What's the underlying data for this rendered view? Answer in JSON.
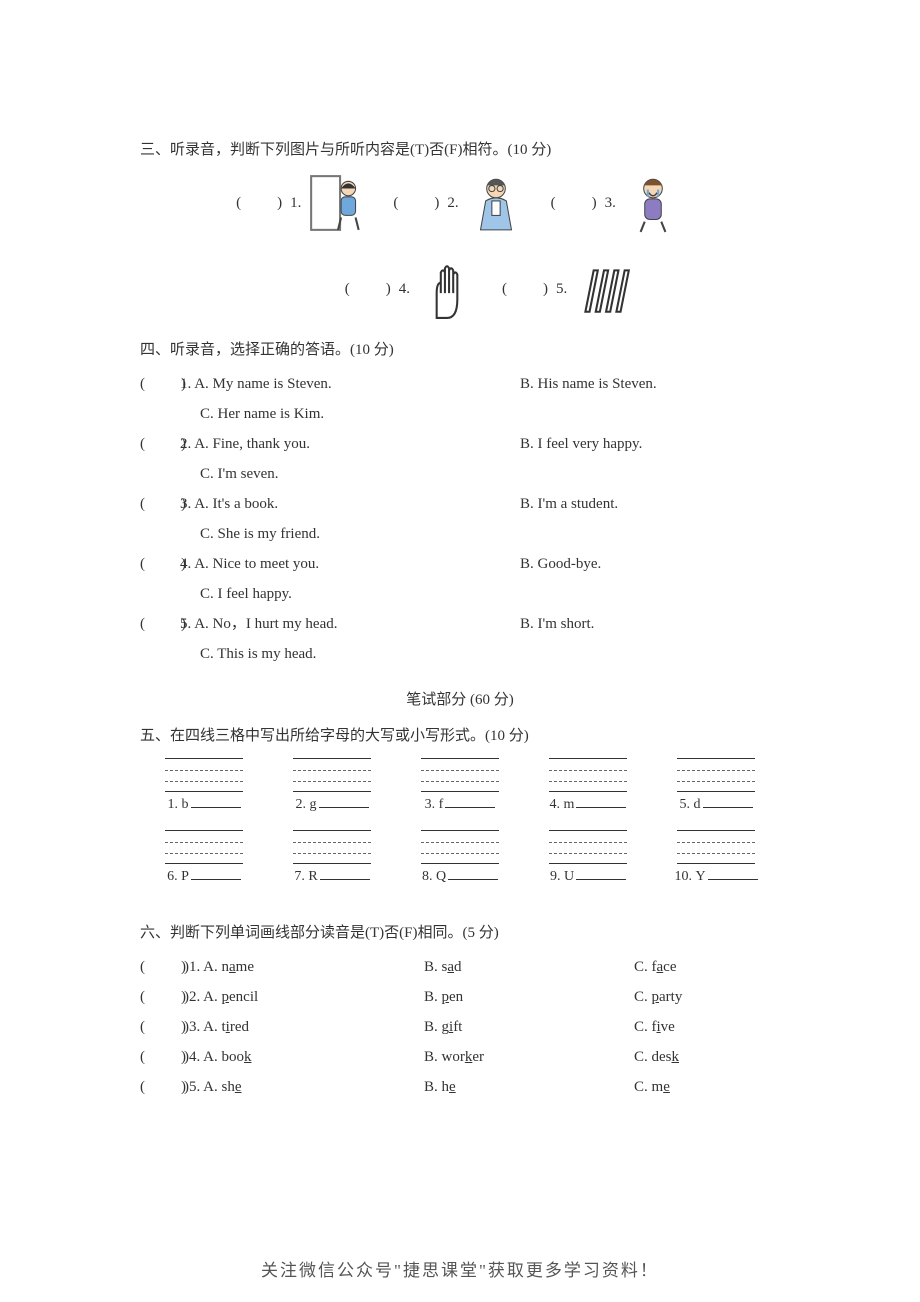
{
  "colors": {
    "text": "#333333",
    "bg": "#ffffff",
    "dash": "#666666",
    "footer": "#555555"
  },
  "typography": {
    "body_font": "SimSun / Songti",
    "body_size_pt": 11,
    "footer_font": "KaiTi",
    "footer_size_pt": 13
  },
  "section3": {
    "title": "三、听录音，判断下列图片与所听内容是(T)否(F)相符。(10 分)",
    "items": [
      {
        "num": "1.",
        "icon": "boy-in-doorway"
      },
      {
        "num": "2.",
        "icon": "teacher-man"
      },
      {
        "num": "3.",
        "icon": "boy-crying"
      },
      {
        "num": "4.",
        "icon": "hand"
      },
      {
        "num": "5.",
        "icon": "pens"
      }
    ],
    "paren_blank": "(　　)"
  },
  "section4": {
    "title": "四、听录音，选择正确的答语。(10 分)",
    "questions": [
      {
        "num": "1.",
        "a": "A. My name is Steven.",
        "b": "B. His name is Steven.",
        "c": "C. Her name is Kim."
      },
      {
        "num": "2.",
        "a": "A. Fine, thank you.",
        "b": "B. I feel very happy.",
        "c": "C. I'm seven."
      },
      {
        "num": "3.",
        "a": "A. It's a book.",
        "b": "B. I'm a student.",
        "c": "C. She is my friend."
      },
      {
        "num": "4.",
        "a": "A. Nice to meet you.",
        "b": "B. Good-bye.",
        "c": "C. I feel happy."
      },
      {
        "num": "5.",
        "a": "A. No，I hurt my head.",
        "b": "B. I'm short.",
        "c": "C. This is my head."
      }
    ]
  },
  "written_heading": "笔试部分 (60 分)",
  "section5": {
    "title": "五、在四线三格中写出所给字母的大写或小写形式。(10 分)",
    "items": [
      {
        "num": "1.",
        "letter": "b"
      },
      {
        "num": "2.",
        "letter": "g"
      },
      {
        "num": "3.",
        "letter": "f"
      },
      {
        "num": "4.",
        "letter": "m"
      },
      {
        "num": "5.",
        "letter": "d"
      },
      {
        "num": "6.",
        "letter": "P"
      },
      {
        "num": "7.",
        "letter": "R"
      },
      {
        "num": "8.",
        "letter": "Q"
      },
      {
        "num": "9.",
        "letter": "U"
      },
      {
        "num": "10.",
        "letter": "Y"
      }
    ]
  },
  "section6": {
    "title": "六、判断下列单词画线部分读音是(T)否(F)相同。(5 分)",
    "questions": [
      {
        "num": "1.",
        "a_pre": "A. n",
        "a_u": "a",
        "a_post": "me",
        "b_pre": "B. s",
        "b_u": "a",
        "b_post": "d",
        "c_pre": "C. f",
        "c_u": "a",
        "c_post": "ce"
      },
      {
        "num": "2.",
        "a_pre": "A. ",
        "a_u": "p",
        "a_post": "encil",
        "b_pre": "B. ",
        "b_u": "p",
        "b_post": "en",
        "c_pre": "C. ",
        "c_u": "p",
        "c_post": "arty"
      },
      {
        "num": "3.",
        "a_pre": "A. t",
        "a_u": "i",
        "a_post": "red",
        "b_pre": "B. g",
        "b_u": "i",
        "b_post": "ft",
        "c_pre": "C. f",
        "c_u": "i",
        "c_post": "ve"
      },
      {
        "num": "4.",
        "a_pre": "A. boo",
        "a_u": "k",
        "a_post": "",
        "b_pre": "B. wor",
        "b_u": "k",
        "b_post": "er",
        "c_pre": "C. des",
        "c_u": "k",
        "c_post": ""
      },
      {
        "num": "5.",
        "a_pre": "A. sh",
        "a_u": "e",
        "a_post": "",
        "b_pre": "B. h",
        "b_u": "e",
        "b_post": "",
        "c_pre": "C. m",
        "c_u": "e",
        "c_post": ""
      }
    ]
  },
  "footer": "关注微信公众号\"捷思课堂\"获取更多学习资料！"
}
